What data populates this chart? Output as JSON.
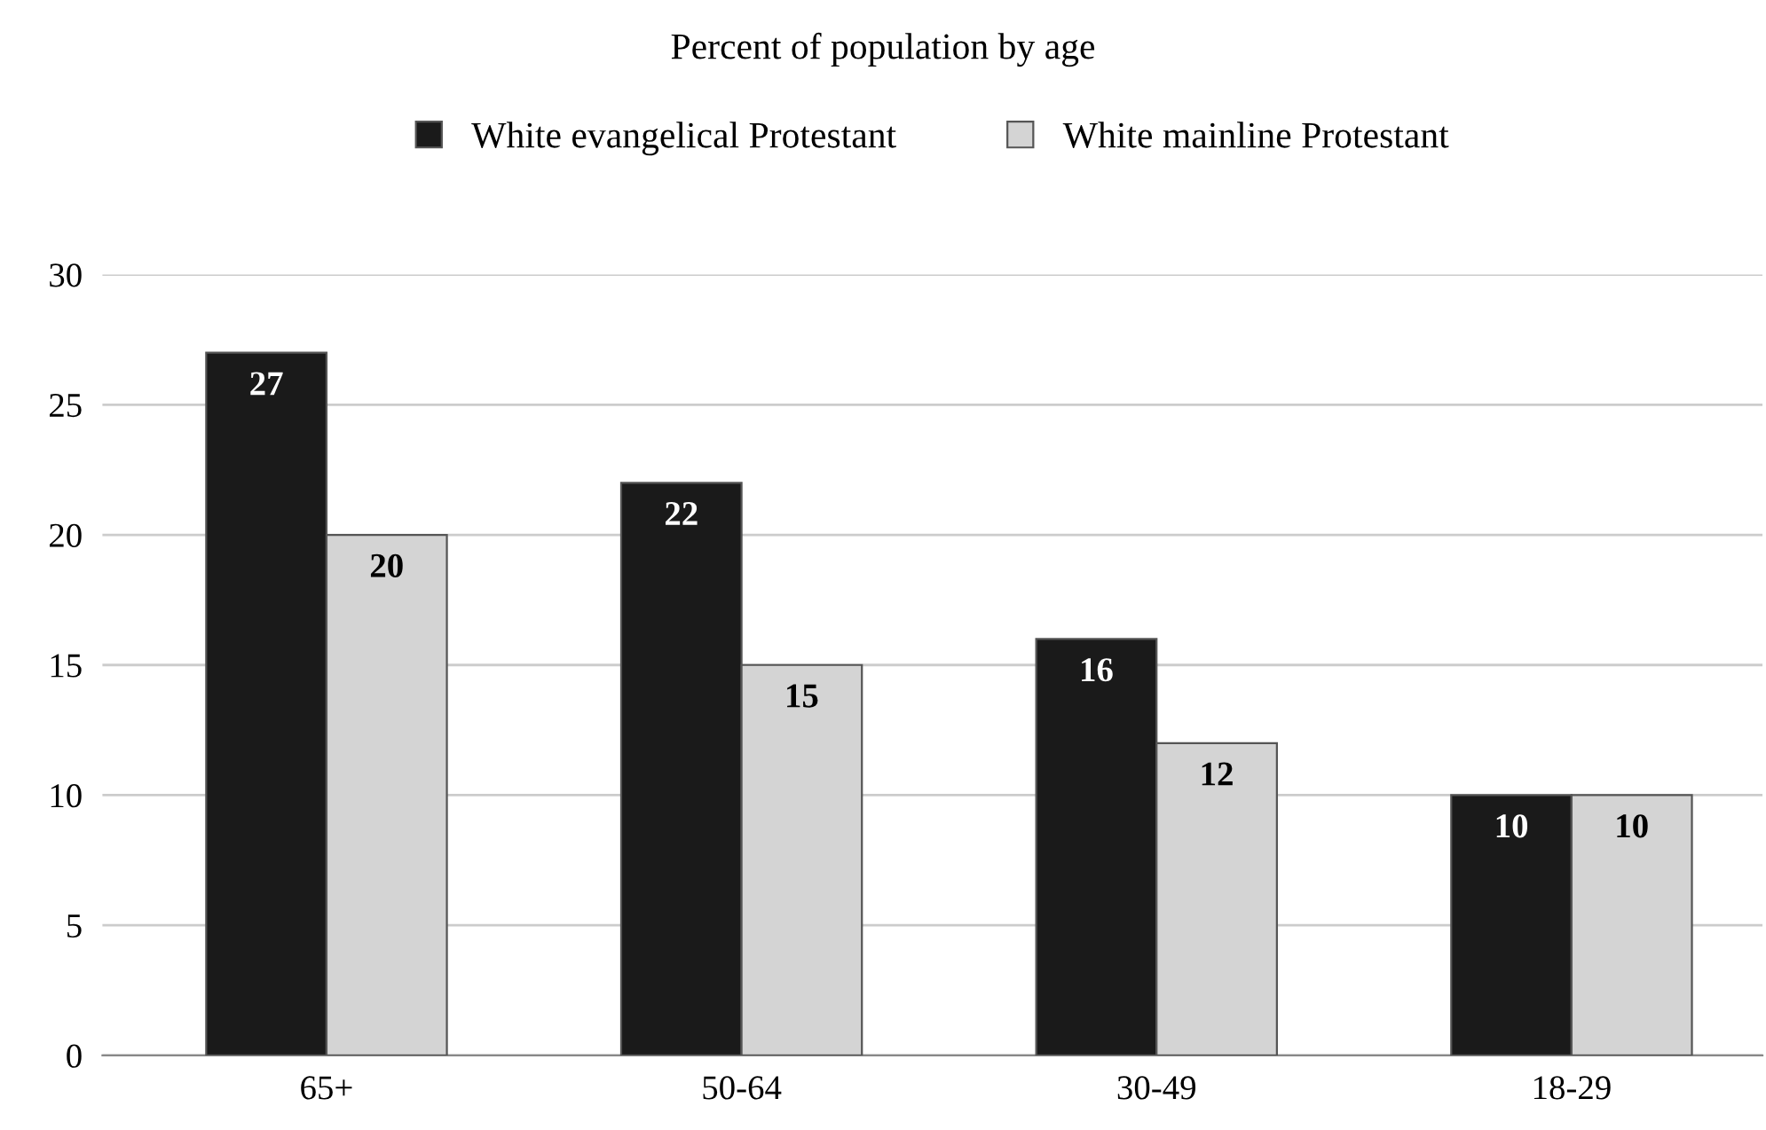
{
  "chart_data": {
    "type": "bar",
    "title": "Percent of population by age",
    "categories": [
      "65+",
      "50-64",
      "30-49",
      "18-29"
    ],
    "series": [
      {
        "name": "White evangelical Protestant",
        "color": "#1a1a1a",
        "values": [
          27,
          22,
          16,
          10
        ]
      },
      {
        "name": "White mainline Protestant",
        "color": "#d4d4d4",
        "values": [
          20,
          15,
          12,
          10
        ]
      }
    ],
    "ylim": [
      0,
      30
    ],
    "yticks": [
      0,
      5,
      10,
      15,
      20,
      25,
      30
    ],
    "grid": "y",
    "legend": "top",
    "data_labels": true
  }
}
